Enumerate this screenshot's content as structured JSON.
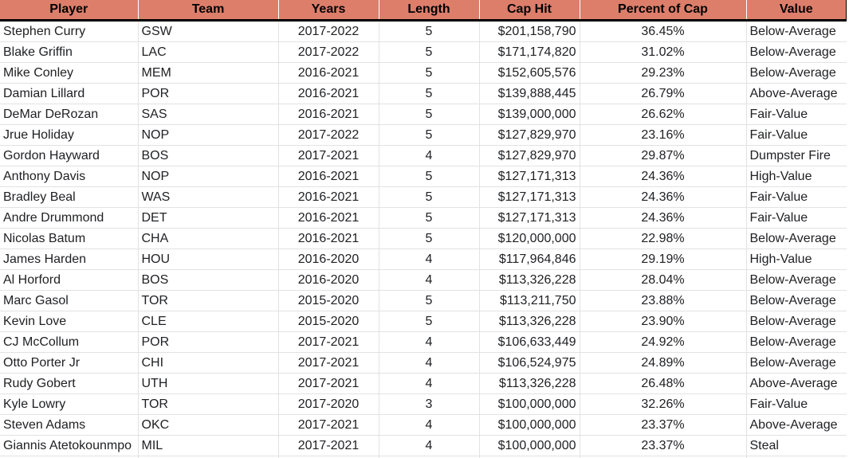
{
  "columns": [
    "Player",
    "Team",
    "Years",
    "Length",
    "Cap Hit",
    "Percent of Cap",
    "Value"
  ],
  "rows": [
    [
      "Stephen Curry",
      "GSW",
      "2017-2022",
      "5",
      "$201,158,790",
      "36.45%",
      "Below-Average"
    ],
    [
      "Blake Griffin",
      "LAC",
      "2017-2022",
      "5",
      "$171,174,820",
      "31.02%",
      "Below-Average"
    ],
    [
      "Mike Conley",
      "MEM",
      "2016-2021",
      "5",
      "$152,605,576",
      "29.23%",
      "Below-Average"
    ],
    [
      "Damian Lillard",
      "POR",
      "2016-2021",
      "5",
      "$139,888,445",
      "26.79%",
      "Above-Average"
    ],
    [
      "DeMar DeRozan",
      "SAS",
      "2016-2021",
      "5",
      "$139,000,000",
      "26.62%",
      "Fair-Value"
    ],
    [
      "Jrue Holiday",
      "NOP",
      "2017-2022",
      "5",
      "$127,829,970",
      "23.16%",
      "Fair-Value"
    ],
    [
      "Gordon Hayward",
      "BOS",
      "2017-2021",
      "4",
      "$127,829,970",
      "29.87%",
      "Dumpster Fire"
    ],
    [
      "Anthony Davis",
      "NOP",
      "2016-2021",
      "5",
      "$127,171,313",
      "24.36%",
      "High-Value"
    ],
    [
      "Bradley Beal",
      "WAS",
      "2016-2021",
      "5",
      "$127,171,313",
      "24.36%",
      "Fair-Value"
    ],
    [
      "Andre Drummond",
      "DET",
      "2016-2021",
      "5",
      "$127,171,313",
      "24.36%",
      "Fair-Value"
    ],
    [
      "Nicolas Batum",
      "CHA",
      "2016-2021",
      "5",
      "$120,000,000",
      "22.98%",
      "Below-Average"
    ],
    [
      "James Harden",
      "HOU",
      "2016-2020",
      "4",
      "$117,964,846",
      "29.19%",
      "High-Value"
    ],
    [
      "Al Horford",
      "BOS",
      "2016-2020",
      "4",
      "$113,326,228",
      "28.04%",
      "Below-Average"
    ],
    [
      "Marc Gasol",
      "TOR",
      "2015-2020",
      "5",
      "$113,211,750",
      "23.88%",
      "Below-Average"
    ],
    [
      "Kevin Love",
      "CLE",
      "2015-2020",
      "5",
      "$113,326,228",
      "23.90%",
      "Below-Average"
    ],
    [
      "CJ McCollum",
      "POR",
      "2017-2021",
      "4",
      "$106,633,449",
      "24.92%",
      "Below-Average"
    ],
    [
      "Otto Porter Jr",
      "CHI",
      "2017-2021",
      "4",
      "$106,524,975",
      "24.89%",
      "Below-Average"
    ],
    [
      "Rudy Gobert",
      "UTH",
      "2017-2021",
      "4",
      "$113,326,228",
      "26.48%",
      "Above-Average"
    ],
    [
      "Kyle Lowry",
      "TOR",
      "2017-2020",
      "3",
      "$100,000,000",
      "32.26%",
      "Fair-Value"
    ],
    [
      "Steven Adams",
      "OKC",
      "2017-2021",
      "4",
      "$100,000,000",
      "23.37%",
      "Above-Average"
    ],
    [
      "Giannis Atetokounmpo",
      "MIL",
      "2017-2021",
      "4",
      "$100,000,000",
      "23.37%",
      "Steal"
    ],
    [
      "",
      "",
      "",
      "",
      "",
      "",
      ""
    ]
  ],
  "colors": {
    "header_fill": "#dd7e6b",
    "header_border": "#000000",
    "grid": "#e2e2e2",
    "text": "#202124"
  }
}
